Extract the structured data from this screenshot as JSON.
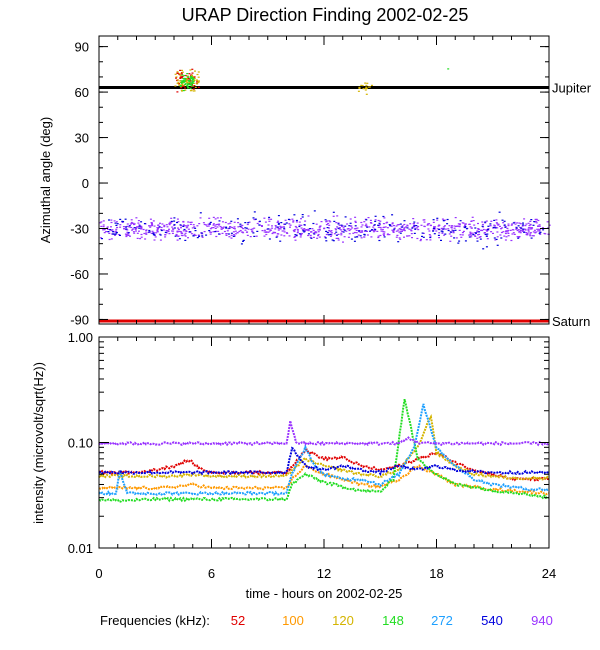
{
  "chart_data": [
    {
      "type": "scatter",
      "title": "URAP Direction Finding  2002-02-25",
      "ylabel": "Azimuthal angle (deg)",
      "xlabel": "",
      "xlim": [
        0,
        24
      ],
      "ylim": [
        -93,
        97
      ],
      "yticks": [
        90,
        60,
        30,
        0,
        -30,
        -60,
        -90
      ],
      "grid": false,
      "reference_lines": [
        {
          "label": "Jupiter",
          "y": 63,
          "color": "#000000"
        },
        {
          "label": "Saturn",
          "y": -91,
          "color": "#e00000"
        }
      ],
      "clusters": [
        {
          "freq": "52",
          "x": [
            4.0,
            5.3
          ],
          "y": [
            58,
            78
          ],
          "density": "medium"
        },
        {
          "freq": "120",
          "x": [
            4.0,
            5.3
          ],
          "y": [
            58,
            78
          ],
          "density": "medium"
        },
        {
          "freq": "148",
          "x": [
            4.3,
            5.0
          ],
          "y": [
            60,
            74
          ],
          "density": "medium"
        },
        {
          "freq": "120",
          "x": [
            13.8,
            14.6
          ],
          "y": [
            58,
            70
          ],
          "density": "low"
        },
        {
          "freq": "148",
          "x": [
            18.5,
            18.6
          ],
          "y": [
            75,
            77
          ],
          "density": "single"
        },
        {
          "freq": "940",
          "x": [
            0,
            24
          ],
          "y": [
            -40,
            -20
          ],
          "density": "high"
        },
        {
          "freq": "540",
          "x": [
            0,
            24
          ],
          "y": [
            -45,
            -15
          ],
          "density": "medium"
        }
      ]
    },
    {
      "type": "line",
      "ylabel": "intensity (microvolt/sqrt(Hz))",
      "xlabel": "time - hours on 2002-02-25",
      "xlim": [
        0,
        24
      ],
      "ylim": [
        0.01,
        1.0
      ],
      "yscale": "log",
      "xticks": [
        0,
        6,
        12,
        18,
        24
      ],
      "yticks": [
        "1.00",
        "0.10",
        "0.01"
      ],
      "grid": false,
      "legend_label": "Frequencies (kHz):",
      "legend_placement": "bottom",
      "series": [
        {
          "name": "52",
          "color": "#e00000",
          "x": [
            0,
            2,
            3,
            4,
            4.8,
            5.3,
            6,
            10,
            10.3,
            11,
            12,
            13,
            14,
            15,
            16,
            17,
            18,
            19,
            20,
            21,
            22,
            23,
            24
          ],
          "y": [
            0.052,
            0.052,
            0.055,
            0.06,
            0.068,
            0.058,
            0.052,
            0.052,
            0.06,
            0.085,
            0.07,
            0.072,
            0.06,
            0.055,
            0.06,
            0.07,
            0.08,
            0.065,
            0.055,
            0.05,
            0.045,
            0.045,
            0.045
          ]
        },
        {
          "name": "100",
          "color": "#ff9900",
          "x": [
            0,
            3,
            4,
            5,
            6,
            10,
            10.3,
            11,
            12,
            13,
            14,
            15,
            16,
            17,
            18,
            19,
            20,
            21,
            22,
            23,
            24
          ],
          "y": [
            0.037,
            0.037,
            0.038,
            0.04,
            0.037,
            0.037,
            0.045,
            0.06,
            0.05,
            0.045,
            0.04,
            0.038,
            0.045,
            0.06,
            0.05,
            0.04,
            0.038,
            0.036,
            0.035,
            0.034,
            0.033
          ]
        },
        {
          "name": "120",
          "color": "#d4b400",
          "x": [
            0,
            4,
            5,
            6,
            10,
            10.3,
            11,
            12,
            13,
            14,
            15,
            16,
            17,
            17.7,
            18,
            19,
            20,
            21,
            22,
            23,
            24
          ],
          "y": [
            0.048,
            0.048,
            0.05,
            0.048,
            0.048,
            0.055,
            0.07,
            0.06,
            0.055,
            0.05,
            0.048,
            0.055,
            0.09,
            0.18,
            0.08,
            0.06,
            0.05,
            0.048,
            0.046,
            0.046,
            0.046
          ]
        },
        {
          "name": "148",
          "color": "#22dd22",
          "x": [
            0,
            1,
            3,
            6,
            10,
            10.3,
            11,
            12,
            13,
            14,
            15,
            15.7,
            16.3,
            17,
            18,
            19,
            20,
            21,
            22,
            23,
            24
          ],
          "y": [
            0.029,
            0.028,
            0.029,
            0.029,
            0.029,
            0.04,
            0.05,
            0.042,
            0.038,
            0.035,
            0.034,
            0.045,
            0.26,
            0.07,
            0.05,
            0.04,
            0.038,
            0.035,
            0.034,
            0.032,
            0.03
          ]
        },
        {
          "name": "272",
          "color": "#1ea0ff",
          "x": [
            0,
            0.9,
            1.1,
            1.5,
            6,
            10,
            10.3,
            11,
            11.5,
            12,
            13,
            14,
            15,
            16,
            16.8,
            17.3,
            18,
            19,
            20,
            21,
            22,
            23,
            24
          ],
          "y": [
            0.033,
            0.033,
            0.055,
            0.033,
            0.033,
            0.033,
            0.05,
            0.09,
            0.06,
            0.05,
            0.045,
            0.045,
            0.04,
            0.05,
            0.09,
            0.23,
            0.09,
            0.06,
            0.045,
            0.04,
            0.038,
            0.036,
            0.036
          ]
        },
        {
          "name": "540",
          "color": "#0000dd",
          "x": [
            0,
            6,
            10,
            10.3,
            11,
            12,
            13,
            14,
            15,
            16,
            17,
            18,
            19,
            20,
            21,
            22,
            23,
            24
          ],
          "y": [
            0.052,
            0.052,
            0.052,
            0.09,
            0.06,
            0.055,
            0.06,
            0.055,
            0.052,
            0.06,
            0.055,
            0.06,
            0.055,
            0.053,
            0.052,
            0.052,
            0.052,
            0.052
          ]
        },
        {
          "name": "940",
          "color": "#9933ff",
          "x": [
            0,
            1,
            10,
            10.2,
            10.5,
            11,
            12,
            14,
            16,
            16.5,
            17,
            18,
            19,
            20,
            22,
            24
          ],
          "y": [
            0.098,
            0.098,
            0.098,
            0.16,
            0.1,
            0.098,
            0.098,
            0.098,
            0.098,
            0.11,
            0.1,
            0.098,
            0.098,
            0.098,
            0.098,
            0.098
          ]
        }
      ]
    }
  ]
}
